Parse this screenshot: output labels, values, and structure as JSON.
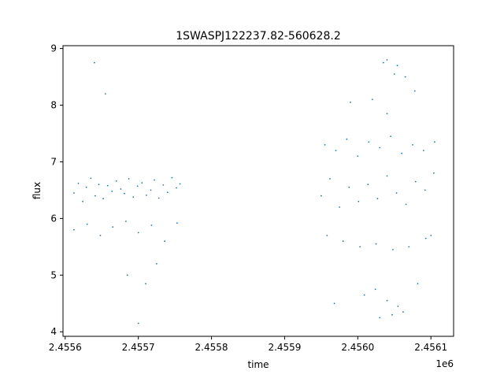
{
  "chart_data": {
    "type": "scatter",
    "title": "1SWASPJ122237.82-560628.2",
    "xlabel": "time",
    "ylabel": "flux",
    "x_offset_label": "1e6",
    "xlim": [
      2455597,
      2456131
    ],
    "ylim": [
      3.92,
      9.05
    ],
    "x_ticks": [
      2455600,
      2455700,
      2455800,
      2455900,
      2456000,
      2456100
    ],
    "x_tick_labels": [
      "2.4556",
      "2.4557",
      "2.4558",
      "2.4559",
      "2.4560",
      "2.4561"
    ],
    "y_ticks": [
      4,
      5,
      6,
      7,
      8,
      9
    ],
    "y_tick_labels": [
      "4",
      "5",
      "6",
      "7",
      "8",
      "9"
    ],
    "grid": false,
    "marker_color": "#1f77b4",
    "series": [
      {
        "x": [
          2455612,
          2455618,
          2455624,
          2455629,
          2455635,
          2455641,
          2455646,
          2455652,
          2455658,
          2455664,
          2455670,
          2455676,
          2455681,
          2455687,
          2455693,
          2455699,
          2455705,
          2455711,
          2455717,
          2455722,
          2455728,
          2455734,
          2455740,
          2455746,
          2455752,
          2455757,
          2455612,
          2455630,
          2455648,
          2455665,
          2455683,
          2455700,
          2455718,
          2455736,
          2455753,
          2455950,
          2455962,
          2455975,
          2455988,
          2456001,
          2456014,
          2456027,
          2456040,
          2456053,
          2456066,
          2456079,
          2456092,
          2456104,
          2455955,
          2455970,
          2455985,
          2456000,
          2456015,
          2456030,
          2456045,
          2456060,
          2456075,
          2456090,
          2456105,
          2455958,
          2455980,
          2456003,
          2456025,
          2456048,
          2456070,
          2456093,
          2456035,
          2456050,
          2456020,
          2456065,
          2456040,
          2455990,
          2456078,
          2456040,
          2456055,
          2456030,
          2456047,
          2456009,
          2456062,
          2456024,
          2455968,
          2456082,
          2456040,
          2456054,
          2455710,
          2455685,
          2455700,
          2455725,
          2455640,
          2455655,
          2456100
        ],
        "y": [
          6.45,
          6.62,
          6.3,
          6.55,
          6.71,
          6.4,
          6.6,
          6.35,
          6.58,
          6.48,
          6.66,
          6.52,
          6.44,
          6.7,
          6.38,
          6.57,
          6.63,
          6.41,
          6.5,
          6.68,
          6.36,
          6.59,
          6.46,
          6.72,
          6.54,
          6.61,
          5.8,
          5.9,
          5.7,
          5.85,
          5.95,
          5.75,
          5.88,
          5.6,
          5.92,
          6.4,
          6.7,
          6.2,
          6.55,
          6.3,
          6.6,
          6.35,
          6.75,
          6.45,
          6.25,
          6.65,
          6.5,
          6.8,
          7.3,
          7.2,
          7.4,
          7.1,
          7.35,
          7.25,
          7.45,
          7.15,
          7.3,
          7.2,
          7.35,
          5.7,
          5.6,
          5.5,
          5.55,
          5.45,
          5.5,
          5.65,
          8.75,
          8.55,
          8.1,
          8.5,
          7.85,
          8.05,
          8.25,
          4.55,
          4.45,
          4.25,
          4.3,
          4.65,
          4.35,
          4.75,
          4.5,
          4.85,
          8.8,
          8.7,
          4.85,
          5.0,
          4.15,
          5.2,
          8.75,
          8.2,
          5.7
        ]
      }
    ]
  }
}
